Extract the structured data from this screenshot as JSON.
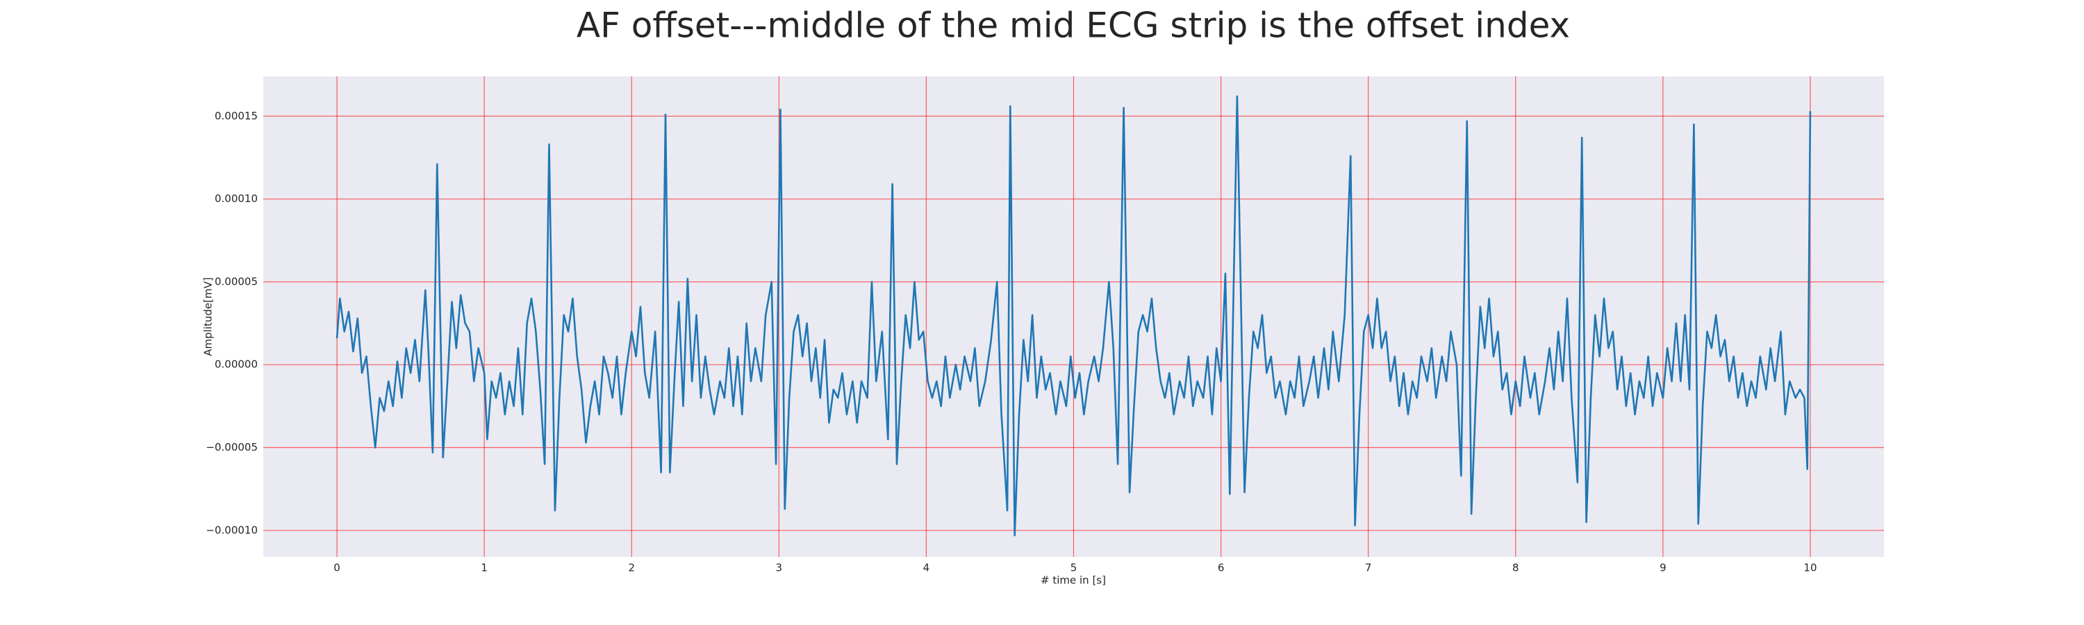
{
  "chart_data": {
    "type": "line",
    "title": "AF offset---middle of the mid ECG strip is the offset index",
    "xlabel": "# time in [s]",
    "ylabel": "Amplitude[mV]",
    "color": "#1f77b4",
    "grid": true,
    "grid_color": "#ff0000",
    "background": "#eaeaf2",
    "xlim": [
      -0.5,
      10.5
    ],
    "ylim": [
      -0.000116,
      0.000174
    ],
    "xticks": [
      0,
      1,
      2,
      3,
      4,
      5,
      6,
      7,
      8,
      9,
      10
    ],
    "yticks": [
      {
        "value": -0.0001,
        "label": "−0.00010"
      },
      {
        "value": -5e-05,
        "label": "−0.00005"
      },
      {
        "value": 0,
        "label": "0.00000"
      },
      {
        "value": 5e-05,
        "label": "0.00005"
      },
      {
        "value": 0.0001,
        "label": "0.00010"
      },
      {
        "value": 0.00015,
        "label": "0.00015"
      }
    ],
    "x": [
      0,
      0.02,
      0.05,
      0.08,
      0.11,
      0.14,
      0.17,
      0.2,
      0.23,
      0.26,
      0.29,
      0.32,
      0.35,
      0.38,
      0.41,
      0.44,
      0.47,
      0.5,
      0.53,
      0.56,
      0.6,
      0.62,
      0.65,
      0.68,
      0.72,
      0.75,
      0.78,
      0.81,
      0.84,
      0.87,
      0.9,
      0.93,
      0.96,
      1.0,
      1.02,
      1.05,
      1.08,
      1.11,
      1.14,
      1.17,
      1.2,
      1.23,
      1.26,
      1.29,
      1.32,
      1.35,
      1.38,
      1.41,
      1.44,
      1.48,
      1.51,
      1.54,
      1.57,
      1.6,
      1.63,
      1.66,
      1.69,
      1.72,
      1.75,
      1.78,
      1.81,
      1.84,
      1.87,
      1.9,
      1.93,
      1.96,
      2.0,
      2.03,
      2.06,
      2.09,
      2.12,
      2.16,
      2.2,
      2.23,
      2.26,
      2.29,
      2.32,
      2.35,
      2.38,
      2.41,
      2.44,
      2.47,
      2.5,
      2.53,
      2.56,
      2.6,
      2.63,
      2.66,
      2.69,
      2.72,
      2.75,
      2.78,
      2.81,
      2.84,
      2.88,
      2.91,
      2.95,
      2.98,
      3.01,
      3.04,
      3.07,
      3.1,
      3.13,
      3.16,
      3.19,
      3.22,
      3.25,
      3.28,
      3.31,
      3.34,
      3.37,
      3.4,
      3.43,
      3.46,
      3.5,
      3.53,
      3.56,
      3.6,
      3.63,
      3.66,
      3.7,
      3.74,
      3.77,
      3.8,
      3.83,
      3.86,
      3.89,
      3.92,
      3.95,
      3.98,
      4.01,
      4.04,
      4.07,
      4.1,
      4.13,
      4.16,
      4.2,
      4.23,
      4.26,
      4.3,
      4.33,
      4.36,
      4.4,
      4.44,
      4.48,
      4.51,
      4.55,
      4.57,
      4.6,
      4.63,
      4.66,
      4.69,
      4.72,
      4.75,
      4.78,
      4.81,
      4.84,
      4.88,
      4.91,
      4.95,
      4.98,
      5.01,
      5.04,
      5.07,
      5.1,
      5.14,
      5.17,
      5.2,
      5.24,
      5.27,
      5.3,
      5.34,
      5.38,
      5.41,
      5.44,
      5.47,
      5.5,
      5.53,
      5.56,
      5.59,
      5.62,
      5.65,
      5.68,
      5.72,
      5.75,
      5.78,
      5.81,
      5.84,
      5.88,
      5.91,
      5.94,
      5.97,
      6.0,
      6.03,
      6.06,
      6.11,
      6.16,
      6.19,
      6.22,
      6.25,
      6.28,
      6.31,
      6.34,
      6.37,
      6.4,
      6.44,
      6.47,
      6.5,
      6.53,
      6.56,
      6.6,
      6.63,
      6.66,
      6.7,
      6.73,
      6.76,
      6.8,
      6.84,
      6.88,
      6.91,
      6.94,
      6.97,
      7.0,
      7.03,
      7.06,
      7.09,
      7.12,
      7.15,
      7.18,
      7.21,
      7.24,
      7.27,
      7.3,
      7.33,
      7.36,
      7.4,
      7.43,
      7.46,
      7.5,
      7.53,
      7.56,
      7.6,
      7.63,
      7.67,
      7.7,
      7.73,
      7.76,
      7.79,
      7.82,
      7.85,
      7.88,
      7.91,
      7.94,
      7.97,
      8.0,
      8.03,
      8.06,
      8.1,
      8.13,
      8.16,
      8.2,
      8.23,
      8.26,
      8.29,
      8.32,
      8.35,
      8.38,
      8.42,
      8.45,
      8.48,
      8.51,
      8.54,
      8.57,
      8.6,
      8.63,
      8.66,
      8.69,
      8.72,
      8.75,
      8.78,
      8.81,
      8.84,
      8.87,
      8.9,
      8.93,
      8.96,
      9.0,
      9.03,
      9.06,
      9.09,
      9.12,
      9.15,
      9.18,
      9.21,
      9.24,
      9.27,
      9.3,
      9.33,
      9.36,
      9.39,
      9.42,
      9.45,
      9.48,
      9.51,
      9.54,
      9.57,
      9.6,
      9.63,
      9.66,
      9.7,
      9.73,
      9.76,
      9.8,
      9.83,
      9.86,
      9.9,
      9.93,
      9.96,
      9.98,
      10.0
    ],
    "values": [
      1.6e-05,
      4e-05,
      2e-05,
      3.2e-05,
      8e-06,
      2.8e-05,
      -5e-06,
      5e-06,
      -2.5e-05,
      -5e-05,
      -2e-05,
      -2.8e-05,
      -1e-05,
      -2.5e-05,
      2e-06,
      -2e-05,
      1e-05,
      -5e-06,
      1.5e-05,
      -1e-05,
      4.5e-05,
      1e-05,
      -5.3e-05,
      0.000121,
      -5.6e-05,
      -1e-05,
      3.8e-05,
      1e-05,
      4.2e-05,
      2.5e-05,
      2e-05,
      -1e-05,
      1e-05,
      -5e-06,
      -4.5e-05,
      -1e-05,
      -2e-05,
      -5e-06,
      -3e-05,
      -1e-05,
      -2.5e-05,
      1e-05,
      -3e-05,
      2.5e-05,
      4e-05,
      2e-05,
      -1.5e-05,
      -6e-05,
      0.000133,
      -8.8e-05,
      -2e-05,
      3e-05,
      2e-05,
      4e-05,
      5e-06,
      -1.5e-05,
      -4.7e-05,
      -2.5e-05,
      -1e-05,
      -3e-05,
      5e-06,
      -5e-06,
      -2e-05,
      5e-06,
      -3e-05,
      -5e-06,
      2e-05,
      5e-06,
      3.5e-05,
      -5e-06,
      -2e-05,
      2e-05,
      -6.5e-05,
      0.000151,
      -6.5e-05,
      -1e-05,
      3.8e-05,
      -2.5e-05,
      5.2e-05,
      -1e-05,
      3e-05,
      -2e-05,
      5e-06,
      -1.5e-05,
      -3e-05,
      -1e-05,
      -2e-05,
      1e-05,
      -2.5e-05,
      5e-06,
      -3e-05,
      2.5e-05,
      -1e-05,
      1e-05,
      -1e-05,
      3e-05,
      5e-05,
      -6e-05,
      0.000154,
      -8.7e-05,
      -2e-05,
      2e-05,
      3e-05,
      5e-06,
      2.5e-05,
      -1e-05,
      1e-05,
      -2e-05,
      1.5e-05,
      -3.5e-05,
      -1.5e-05,
      -2e-05,
      -5e-06,
      -3e-05,
      -1e-05,
      -3.5e-05,
      -1e-05,
      -2e-05,
      5e-05,
      -1e-05,
      2e-05,
      -4.5e-05,
      0.000109,
      -6e-05,
      -1e-05,
      3e-05,
      1e-05,
      5e-05,
      1.5e-05,
      2e-05,
      -1e-05,
      -2e-05,
      -1e-05,
      -2.5e-05,
      5e-06,
      -2e-05,
      0,
      -1.5e-05,
      5e-06,
      -1e-05,
      1e-05,
      -2.5e-05,
      -1e-05,
      1.5e-05,
      5e-05,
      -3e-05,
      -8.8e-05,
      0.000156,
      -0.000103,
      -3e-05,
      1.5e-05,
      -1e-05,
      3e-05,
      -2e-05,
      5e-06,
      -1.5e-05,
      -5e-06,
      -3e-05,
      -1e-05,
      -2.5e-05,
      5e-06,
      -2e-05,
      -5e-06,
      -3e-05,
      -1e-05,
      5e-06,
      -1e-05,
      1e-05,
      5e-05,
      1e-05,
      -6e-05,
      0.000155,
      -7.7e-05,
      -2.5e-05,
      2e-05,
      3e-05,
      2e-05,
      4e-05,
      1e-05,
      -1e-05,
      -2e-05,
      -5e-06,
      -3e-05,
      -1e-05,
      -2e-05,
      5e-06,
      -2.5e-05,
      -1e-05,
      -2e-05,
      5e-06,
      -3e-05,
      1e-05,
      -1e-05,
      5.5e-05,
      -7.8e-05,
      0.000162,
      -7.7e-05,
      -2e-05,
      2e-05,
      1e-05,
      3e-05,
      -5e-06,
      5e-06,
      -2e-05,
      -1e-05,
      -3e-05,
      -1e-05,
      -2e-05,
      5e-06,
      -2.5e-05,
      -1e-05,
      5e-06,
      -2e-05,
      1e-05,
      -1.5e-05,
      2e-05,
      -1e-05,
      3e-05,
      0.000126,
      -9.7e-05,
      -3e-05,
      2e-05,
      3e-05,
      1e-05,
      4e-05,
      1e-05,
      2e-05,
      -1e-05,
      5e-06,
      -2.5e-05,
      -5e-06,
      -3e-05,
      -1e-05,
      -2e-05,
      5e-06,
      -1e-05,
      1e-05,
      -2e-05,
      5e-06,
      -1e-05,
      2e-05,
      0,
      -6.7e-05,
      0.000147,
      -9e-05,
      -2e-05,
      3.5e-05,
      1e-05,
      4e-05,
      5e-06,
      2e-05,
      -1.5e-05,
      -5e-06,
      -3e-05,
      -1e-05,
      -2.5e-05,
      5e-06,
      -2e-05,
      -5e-06,
      -3e-05,
      -1e-05,
      1e-05,
      -1.5e-05,
      2e-05,
      -1e-05,
      4e-05,
      -2e-05,
      -7.1e-05,
      0.000137,
      -9.5e-05,
      -2e-05,
      3e-05,
      5e-06,
      4e-05,
      1e-05,
      2e-05,
      -1.5e-05,
      5e-06,
      -2.5e-05,
      -5e-06,
      -3e-05,
      -1e-05,
      -2e-05,
      5e-06,
      -2.5e-05,
      -5e-06,
      -2e-05,
      1e-05,
      -1e-05,
      2.5e-05,
      -1e-05,
      3e-05,
      -1.5e-05,
      0.000145,
      -9.6e-05,
      -2.5e-05,
      2e-05,
      1e-05,
      3e-05,
      5e-06,
      1.5e-05,
      -1e-05,
      5e-06,
      -2e-05,
      -5e-06,
      -2.5e-05,
      -1e-05,
      -2e-05,
      5e-06,
      -1.5e-05,
      1e-05,
      -1e-05,
      2e-05,
      -3e-05,
      -1e-05,
      -2e-05,
      -1.5e-05,
      -2e-05,
      -6.3e-05,
      0.000153
    ]
  }
}
